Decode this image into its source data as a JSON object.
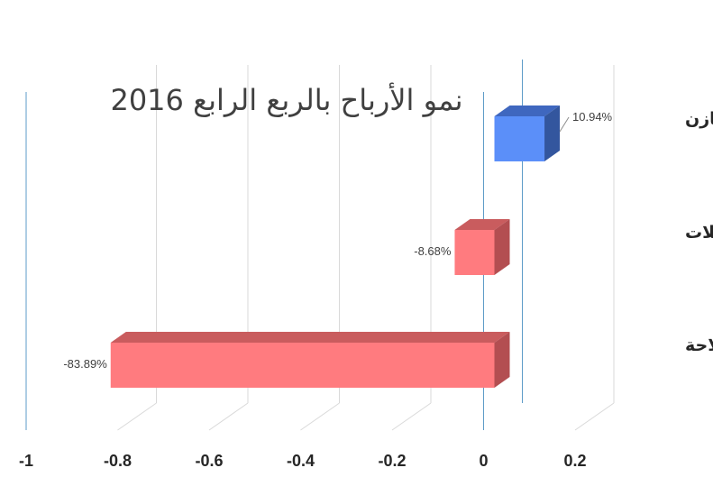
{
  "chart_data": {
    "type": "bar",
    "orientation": "horizontal",
    "title": "نمو الأرباح بالربع الرابع 2016",
    "xlabel": "",
    "ylabel": "",
    "xlim": [
      -1,
      0.2
    ],
    "x_ticks": [
      -1,
      -0.8,
      -0.6,
      -0.4,
      -0.2,
      0,
      0.2
    ],
    "x_tick_labels": [
      "-1",
      "-0.8",
      "-0.6",
      "-0.4",
      "-0.2",
      "0",
      "0.2"
    ],
    "categories": [
      "مخازن",
      "ناقلات",
      "الملاحة"
    ],
    "values": [
      0.1094,
      -0.0868,
      -0.8389
    ],
    "data_labels": [
      "10.94%",
      "-8.68%",
      "-83.89%"
    ],
    "grid": true,
    "legend": "none",
    "style": "3d",
    "colors": {
      "positive_front": "#5B8FF9",
      "positive_top": "#3F67BF",
      "positive_side": "#33569E",
      "negative_front": "#FF7B7F",
      "negative_top": "#C95C5E",
      "negative_side": "#B34E51",
      "axis_line": "#5E9BC8",
      "gridline": "#D9D9D9"
    }
  }
}
